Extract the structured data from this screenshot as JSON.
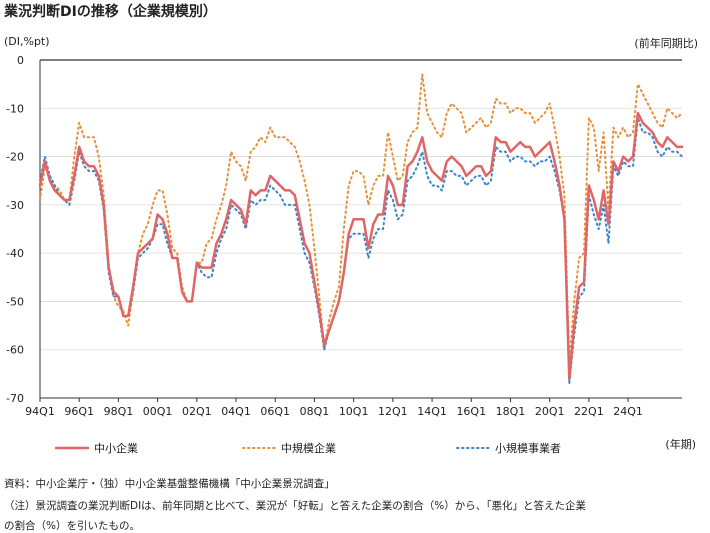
{
  "chart_data": {
    "type": "line",
    "title": "業況判断DIの推移（企業規模別）",
    "ylabel": "(DI,%pt)",
    "right_label": "(前年同期比)",
    "xlabel": "(年期)",
    "ylim": [
      -70,
      0
    ],
    "yticks": [
      0,
      -10,
      -20,
      -30,
      -40,
      -50,
      -60,
      -70
    ],
    "xticks": [
      "94Q1",
      "96Q1",
      "98Q1",
      "00Q1",
      "02Q1",
      "04Q1",
      "06Q1",
      "08Q1",
      "10Q1",
      "12Q1",
      "14Q1",
      "16Q1",
      "18Q1",
      "20Q1",
      "22Q1",
      "24Q1"
    ],
    "x_start": "1994Q1",
    "series": [
      {
        "name": "中小企業",
        "color": "#e06666",
        "style": "solid",
        "values": [
          -26,
          -21,
          -25,
          -27,
          -28,
          -29,
          -29,
          -24,
          -18,
          -21,
          -22,
          -22,
          -24,
          -30,
          -43,
          -48,
          -49,
          -53,
          -53,
          -47,
          -40,
          -39,
          -38,
          -37,
          -32,
          -33,
          -36,
          -41,
          -41,
          -48,
          -50,
          -50,
          -42,
          -43,
          -43,
          -43,
          -38,
          -36,
          -33,
          -29,
          -30,
          -31,
          -34,
          -27,
          -28,
          -27,
          -27,
          -24,
          -25,
          -26,
          -27,
          -27,
          -28,
          -33,
          -38,
          -40,
          -46,
          -52,
          -59,
          -56,
          -53,
          -50,
          -44,
          -36,
          -33,
          -33,
          -33,
          -39,
          -34,
          -32,
          -32,
          -24,
          -26,
          -30,
          -30,
          -22,
          -21,
          -19,
          -16,
          -21,
          -23,
          -24,
          -25,
          -21,
          -20,
          -21,
          -22,
          -24,
          -23,
          -22,
          -22,
          -24,
          -23,
          -16,
          -17,
          -17,
          -19,
          -18,
          -17,
          -18,
          -18,
          -20,
          -19,
          -18,
          -17,
          -21,
          -26,
          -33,
          -66,
          -55,
          -47,
          -46,
          -26,
          -29,
          -33,
          -27,
          -34,
          -21,
          -23,
          -20,
          -21,
          -20,
          -11,
          -13,
          -14,
          -15,
          -17,
          -18,
          -16,
          -17,
          -18,
          -18
        ]
      },
      {
        "name": "中規模企業",
        "color": "#e69138",
        "style": "dotted",
        "values": [
          -29,
          -22,
          -24,
          -26,
          -27,
          -29,
          -29,
          -20,
          -13,
          -16,
          -16,
          -16,
          -20,
          -28,
          -42,
          -49,
          -51,
          -52,
          -55,
          -48,
          -40,
          -36,
          -34,
          -30,
          -27,
          -27,
          -32,
          -39,
          -40,
          -47,
          -50,
          -50,
          -42,
          -42,
          -38,
          -37,
          -33,
          -30,
          -26,
          -19,
          -21,
          -22,
          -25,
          -19,
          -18,
          -16,
          -17,
          -14,
          -16,
          -16,
          -16,
          -17,
          -18,
          -21,
          -25,
          -30,
          -39,
          -49,
          -60,
          -54,
          -50,
          -47,
          -35,
          -26,
          -23,
          -23,
          -24,
          -30,
          -26,
          -24,
          -24,
          -15,
          -20,
          -25,
          -24,
          -17,
          -15,
          -14,
          -3,
          -11,
          -13,
          -15,
          -16,
          -11,
          -9,
          -10,
          -11,
          -15,
          -14,
          -13,
          -12,
          -14,
          -13,
          -8,
          -9,
          -9,
          -11,
          -10,
          -10,
          -11,
          -11,
          -13,
          -12,
          -11,
          -9,
          -14,
          -20,
          -28,
          -63,
          -50,
          -41,
          -40,
          -12,
          -14,
          -23,
          -15,
          -31,
          -14,
          -16,
          -14,
          -16,
          -15,
          -5,
          -7,
          -9,
          -11,
          -13,
          -14,
          -10,
          -11,
          -12,
          -11
        ]
      },
      {
        "name": "小規模事業者",
        "color": "#3d85c6",
        "style": "dotted",
        "values": [
          -25,
          -20,
          -24,
          -26,
          -28,
          -29,
          -30,
          -25,
          -19,
          -22,
          -23,
          -23,
          -25,
          -31,
          -44,
          -49,
          -49,
          -53,
          -53,
          -48,
          -41,
          -40,
          -39,
          -37,
          -34,
          -34,
          -38,
          -41,
          -41,
          -48,
          -50,
          -50,
          -42,
          -44,
          -45,
          -45,
          -40,
          -37,
          -35,
          -30,
          -31,
          -32,
          -35,
          -29,
          -30,
          -29,
          -29,
          -26,
          -27,
          -28,
          -30,
          -30,
          -30,
          -35,
          -40,
          -42,
          -47,
          -53,
          -60,
          -56,
          -53,
          -50,
          -44,
          -37,
          -36,
          -36,
          -36,
          -41,
          -37,
          -35,
          -35,
          -27,
          -29,
          -33,
          -32,
          -25,
          -24,
          -22,
          -19,
          -24,
          -26,
          -26,
          -27,
          -23,
          -23,
          -24,
          -24,
          -26,
          -25,
          -24,
          -24,
          -26,
          -25,
          -18,
          -19,
          -19,
          -21,
          -20,
          -20,
          -21,
          -21,
          -22,
          -21,
          -21,
          -20,
          -23,
          -27,
          -33,
          -67,
          -57,
          -49,
          -48,
          -28,
          -32,
          -35,
          -30,
          -38,
          -22,
          -24,
          -21,
          -22,
          -22,
          -12,
          -15,
          -15,
          -16,
          -19,
          -20,
          -18,
          -19,
          -19,
          -20
        ]
      }
    ],
    "legend_position": "bottom"
  },
  "notes": [
    "資料：中小企業庁・（独）中小企業基盤整備機構「中小企業景況調査」",
    "（注）景況調査の業況判断DIは、前年同期と比べて、業況が「好転」と答えた企業の割合（%）から、「悪化」と答えた企業",
    "の割合（%）を引いたもの。"
  ]
}
